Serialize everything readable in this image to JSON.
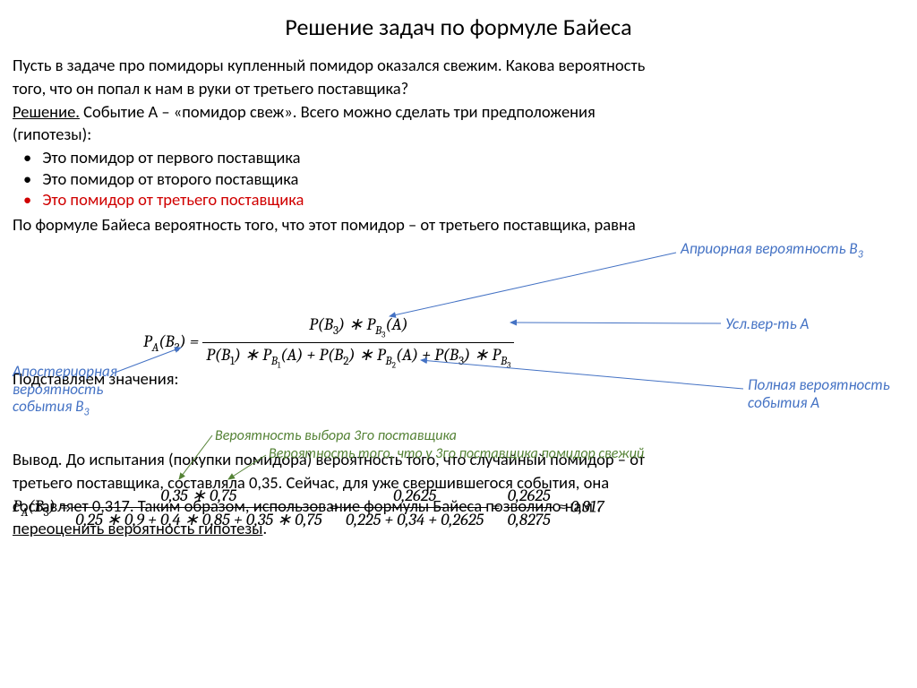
{
  "title": "Решение задач по формуле Байеса",
  "problem_l1": "Пусть в задаче про помидоры купленный помидор оказался свежим. Какова вероятность",
  "problem_l2": "того, что он попал к нам в руки от третьего поставщика?",
  "solution_label": "Решение.",
  "solution_l1": " Событие A – «помидор свеж». Всего можно сделать три предположения",
  "solution_l2": "(гипотезы):",
  "bullets": [
    "Это помидор от первого поставщика",
    "Это помидор от второго поставщика",
    "Это помидор от третьего поставщика"
  ],
  "bayes_intro": "По формуле Байеса вероятность того, что этот помидор – от третьего поставщика, равна",
  "subst_label": "Подставляем значения:",
  "conclusion_l1": "Вывод. До испытания (покупки помидора) вероятность того, что случайный помидор – от",
  "conclusion_l2": "третьего поставщика, составляла 0,35. Сейчас, для уже свершившегося события, она",
  "conclusion_l3": "составляет 0,317. Таким образом, использование формулы Байеса позволило нам",
  "conclusion_underline": "переоценить вероятность гипотезы",
  "annotations": {
    "prior": "Априорная вероятность B",
    "cond": "Усл.вер-ть A",
    "posterior_l1": "Апостериорная",
    "posterior_l2": "вероятность",
    "posterior_l3": "события B",
    "full_l1": "Полная вероятность",
    "full_l2": "события A",
    "choice3": "Вероятность выбора 3го поставщика",
    "fresh3": "Вероятность того, что у 3го поставщика помидор свежий"
  },
  "formula1": {
    "lhs": "P<sub class='sx'>A</sub>(B<sub>3</sub>) =",
    "num": "P(B<sub>3</sub>) ∗ P<sub class='sx'>B<sub>3</sub></sub>(A)",
    "den": "P(B<sub>1</sub>) ∗ P<sub class='sx'>B<sub>1</sub></sub>(A) + P(B<sub>2</sub>) ∗ P<sub class='sx'>B<sub>2</sub></sub>(A) + P(B<sub>3</sub>) ∗ P<sub class='sx'>B<sub>3</sub></sub>"
  },
  "formula2": {
    "lhs": "P<sub class='sx'>A</sub>(B<sub>3</sub>) =",
    "f1_num": "0,35 ∗ 0,75",
    "f1_den": "0,25 ∗ 0,9 + 0,4 ∗ 0,85 + 0,35 ∗ 0,75",
    "f2_num": "0,2625",
    "f2_den": "0,225 + 0,34 + 0,2625",
    "f3_num": "0,2625",
    "f3_den": "0,8275",
    "result": "0,317"
  },
  "colors": {
    "arrow_blue": "#4472c4",
    "arrow_green": "#548235"
  }
}
